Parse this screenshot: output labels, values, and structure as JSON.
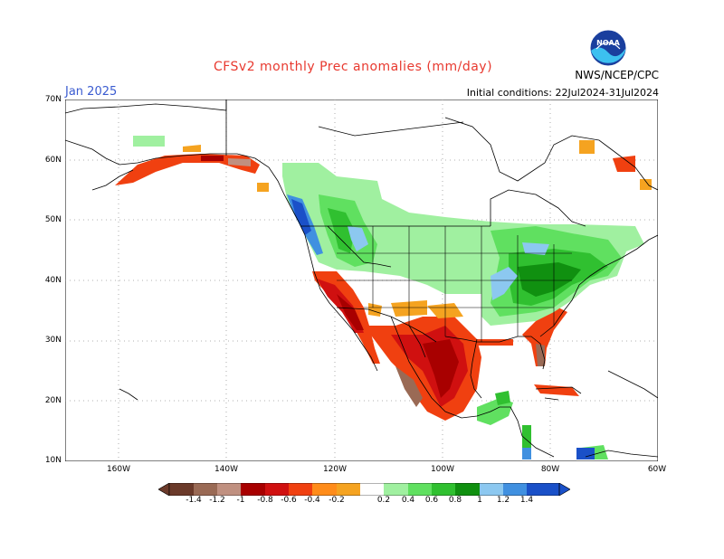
{
  "title": "CFSv2 monthly Prec anomalies (mm/day)",
  "month": "Jan 2025",
  "agency": "NWS/NCEP/CPC",
  "logo_text": "NOAA",
  "initial_conditions": "Initial conditions: 22Jul2024-31Jul2024",
  "lat_labels": [
    "70N",
    "60N",
    "50N",
    "40N",
    "30N",
    "20N",
    "10N"
  ],
  "lon_labels": [
    "160W",
    "140W",
    "120W",
    "100W",
    "80W",
    "60W"
  ],
  "colorbar": {
    "labels": [
      "-1.4",
      "-1.2",
      "-1",
      "-0.8",
      "-0.6",
      "-0.4",
      "-0.2",
      "0.2",
      "0.4",
      "0.6",
      "0.8",
      "1",
      "1.2",
      "1.4"
    ],
    "colors": [
      "#6b3a2a",
      "#9a6a55",
      "#c09080",
      "#a80000",
      "#d01010",
      "#f04010",
      "#ff8c1a",
      "#f5a320",
      "#ffffff",
      "#a0f0a0",
      "#60e060",
      "#30c030",
      "#109010",
      "#8cc8f0",
      "#4090e0",
      "#1a50c8"
    ],
    "palette": {
      "brown_dark": "#6b3a2a",
      "brown_light": "#c09080",
      "red_dark": "#a80000",
      "red": "#e02010",
      "orange_red": "#f04010",
      "orange": "#f5a320",
      "green_light": "#a0f0a0",
      "green": "#50d050",
      "green_dark": "#1c9c1c",
      "blue_light": "#8cc8f0",
      "blue": "#4090e0",
      "blue_dark": "#1a50c8"
    }
  }
}
